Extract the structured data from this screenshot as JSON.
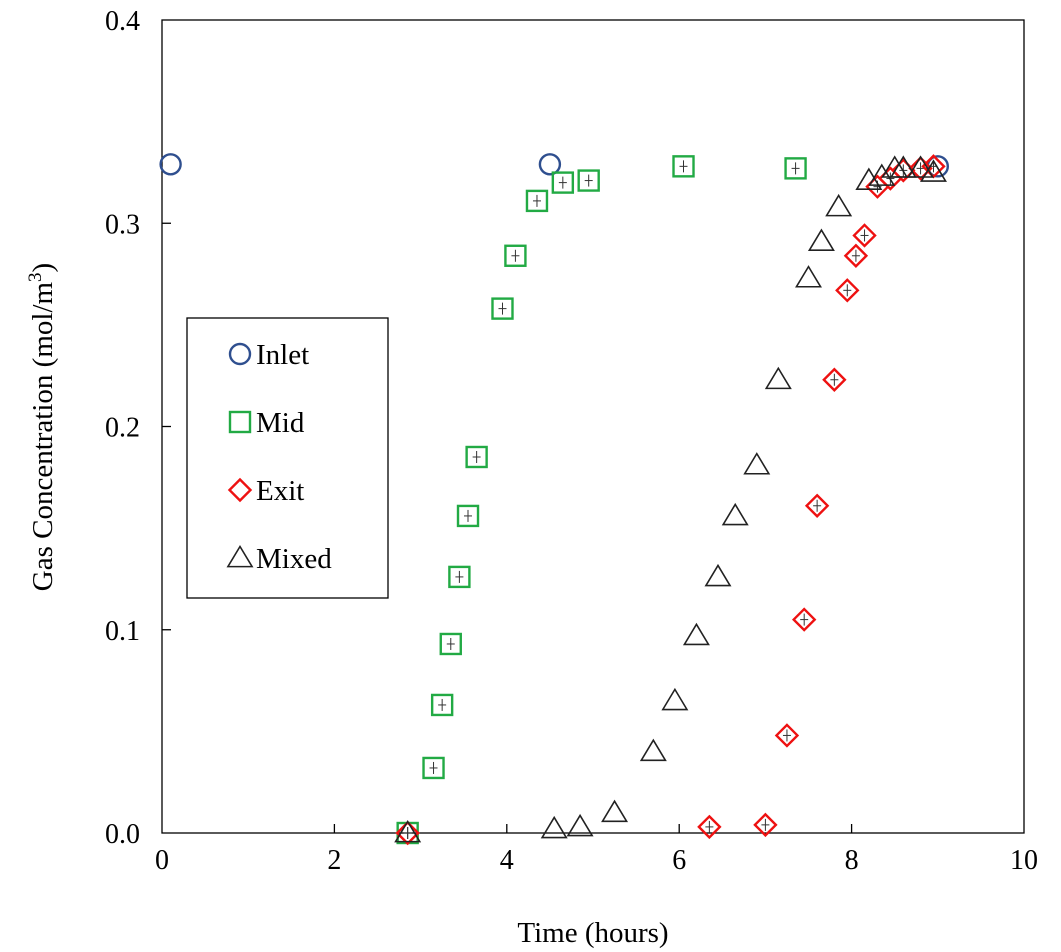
{
  "chart_data": {
    "type": "scatter",
    "title": "",
    "xlabel": "Time (hours)",
    "ylabel": "Gas Concentration (mol/m",
    "ylabel_superscript": "3",
    "ylabel_suffix": ")",
    "xlim": [
      0,
      10
    ],
    "ylim": [
      0,
      0.4
    ],
    "x_ticks": [
      "0",
      "2",
      "4",
      "6",
      "8",
      "10"
    ],
    "y_ticks": [
      "0.0",
      "0.1",
      "0.2",
      "0.3",
      "0.4"
    ],
    "grid": false,
    "legend_position": "center-left",
    "series": [
      {
        "name": "Inlet",
        "marker": "circle",
        "color": "#2F4F8F",
        "points": [
          [
            0.1,
            0.329
          ],
          [
            4.5,
            0.329
          ],
          [
            9.0,
            0.328
          ]
        ],
        "error_bars": false
      },
      {
        "name": "Mid",
        "marker": "square",
        "color": "#22AA44",
        "points": [
          [
            2.85,
            0.0
          ],
          [
            3.15,
            0.032
          ],
          [
            3.25,
            0.063
          ],
          [
            3.35,
            0.093
          ],
          [
            3.45,
            0.126
          ],
          [
            3.55,
            0.156
          ],
          [
            3.65,
            0.185
          ],
          [
            3.95,
            0.258
          ],
          [
            4.1,
            0.284
          ],
          [
            4.35,
            0.311
          ],
          [
            4.65,
            0.32
          ],
          [
            4.95,
            0.321
          ],
          [
            6.05,
            0.328
          ],
          [
            7.35,
            0.327
          ]
        ],
        "error_bars": true
      },
      {
        "name": "Exit",
        "marker": "diamond",
        "color": "#EE1111",
        "points": [
          [
            2.85,
            0.0
          ],
          [
            6.35,
            0.003
          ],
          [
            7.0,
            0.004
          ],
          [
            7.25,
            0.048
          ],
          [
            7.45,
            0.105
          ],
          [
            7.6,
            0.161
          ],
          [
            7.8,
            0.223
          ],
          [
            7.95,
            0.267
          ],
          [
            8.05,
            0.284
          ],
          [
            8.15,
            0.294
          ],
          [
            8.3,
            0.318
          ],
          [
            8.45,
            0.322
          ],
          [
            8.6,
            0.326
          ],
          [
            8.8,
            0.327
          ],
          [
            8.95,
            0.328
          ]
        ],
        "error_bars": true
      },
      {
        "name": "Mixed",
        "marker": "triangle",
        "color": "#222222",
        "points": [
          [
            2.85,
            0.0
          ],
          [
            4.55,
            0.002
          ],
          [
            4.85,
            0.003
          ],
          [
            5.25,
            0.01
          ],
          [
            5.7,
            0.04
          ],
          [
            5.95,
            0.065
          ],
          [
            6.2,
            0.097
          ],
          [
            6.45,
            0.126
          ],
          [
            6.65,
            0.156
          ],
          [
            6.9,
            0.181
          ],
          [
            7.15,
            0.223
          ],
          [
            7.5,
            0.273
          ],
          [
            7.65,
            0.291
          ],
          [
            7.85,
            0.308
          ],
          [
            8.2,
            0.321
          ],
          [
            8.35,
            0.323
          ],
          [
            8.5,
            0.327
          ],
          [
            8.6,
            0.327
          ],
          [
            8.8,
            0.327
          ],
          [
            8.95,
            0.325
          ]
        ],
        "error_bars": false
      }
    ]
  }
}
